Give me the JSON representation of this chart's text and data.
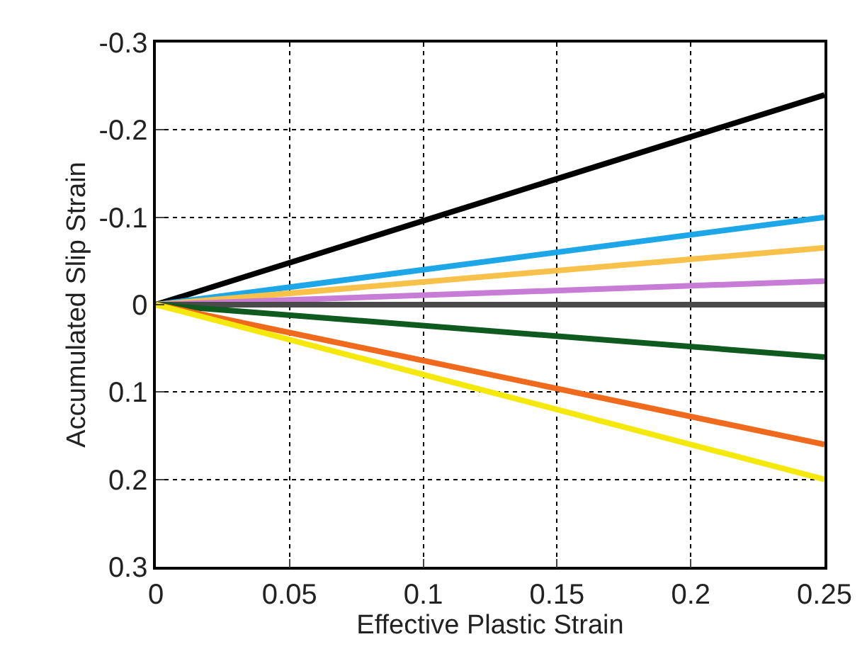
{
  "chart_data": {
    "type": "line",
    "xlabel": "Effective Plastic Strain",
    "ylabel": "Accumulated Slip Strain",
    "x": [
      0,
      0.25
    ],
    "series": [
      {
        "color": "#000000",
        "values": [
          0,
          -0.24
        ]
      },
      {
        "color": "#1ea7e8",
        "values": [
          0,
          -0.1
        ]
      },
      {
        "color": "#f7c14a",
        "values": [
          0,
          -0.065
        ]
      },
      {
        "color": "#c77dd6",
        "values": [
          0,
          -0.027
        ]
      },
      {
        "color": "#4a4a4a",
        "values": [
          0,
          0
        ]
      },
      {
        "color": "#0f5a1f",
        "values": [
          0,
          0.06
        ]
      },
      {
        "color": "#f06a1e",
        "values": [
          0,
          0.16
        ]
      },
      {
        "color": "#f5e80c",
        "values": [
          0,
          0.2
        ]
      }
    ],
    "xlim": [
      0,
      0.25
    ],
    "xticks": [
      0,
      0.05,
      0.1,
      0.15,
      0.2,
      0.25
    ],
    "ylim": [
      0.3,
      -0.3
    ],
    "yticks": [
      -0.3,
      -0.2,
      -0.1,
      0,
      0.1,
      0.2,
      0.3
    ],
    "grid": true,
    "marker": "none",
    "line_style": "solid"
  }
}
